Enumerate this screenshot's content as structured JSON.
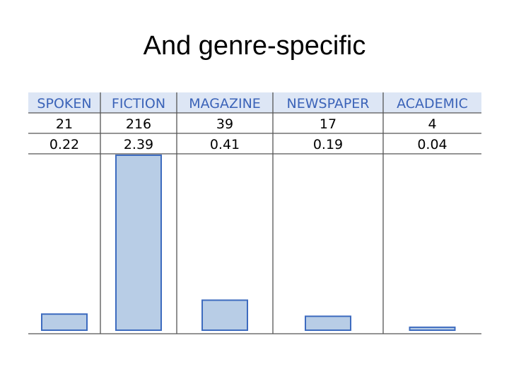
{
  "title": "And genre-specific",
  "chart_data": {
    "type": "bar",
    "categories": [
      "SPOKEN",
      "FICTION",
      "MAGAZINE",
      "NEWSPAPER",
      "ACADEMIC"
    ],
    "counts": [
      "21",
      "216",
      "39",
      "17",
      "4"
    ],
    "per_million_labels": [
      "0.22",
      "2.39",
      "0.41",
      "0.19",
      "0.04"
    ],
    "values": [
      0.22,
      2.39,
      0.41,
      0.19,
      0.04
    ],
    "ylim": [
      0,
      2.39
    ],
    "colors": {
      "header_bg": "#dde6f5",
      "header_text": "#3b63b8",
      "bar_fill": "#b8cde6",
      "bar_stroke": "#3d6bbf",
      "grid": "#555555"
    }
  }
}
